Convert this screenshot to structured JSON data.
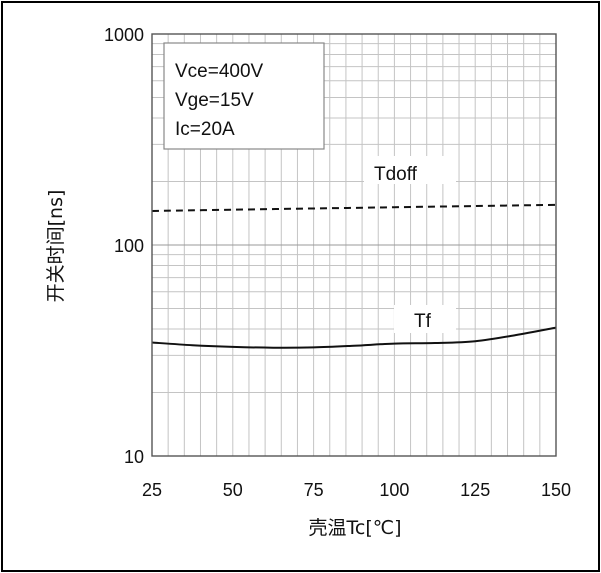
{
  "chart_data": {
    "type": "line",
    "xlabel": "壳温Tc[℃]",
    "ylabel": "开关时间[ns]",
    "x_scale": "linear",
    "y_scale": "log",
    "xlim": [
      25,
      150
    ],
    "ylim": [
      10,
      1000
    ],
    "x_ticks": [
      25,
      50,
      75,
      100,
      125,
      150
    ],
    "y_ticks": [
      10,
      100,
      1000
    ],
    "x_tick_labels": [
      "25",
      "50",
      "75",
      "100",
      "125",
      "150"
    ],
    "y_tick_labels": [
      "10",
      "100",
      "1000"
    ],
    "grid": true,
    "legend_box": [
      "Vce=400V",
      "Vge=15V",
      "Ic=20A"
    ],
    "legend_placement": "top-left",
    "series": [
      {
        "name": "Tdoff",
        "style": "dashed",
        "color": "#111111",
        "x": [
          25,
          50,
          75,
          100,
          125,
          150
        ],
        "y": [
          145,
          147,
          149,
          151,
          153,
          155
        ]
      },
      {
        "name": "Tf",
        "style": "solid",
        "color": "#111111",
        "x": [
          25,
          37.5,
          50,
          62.5,
          75,
          87.5,
          100,
          112.5,
          125,
          137.5,
          150
        ],
        "y": [
          34.5,
          33.5,
          32.9,
          32.6,
          32.7,
          33.3,
          34.1,
          34.3,
          35.0,
          37.4,
          40.6
        ]
      }
    ]
  }
}
